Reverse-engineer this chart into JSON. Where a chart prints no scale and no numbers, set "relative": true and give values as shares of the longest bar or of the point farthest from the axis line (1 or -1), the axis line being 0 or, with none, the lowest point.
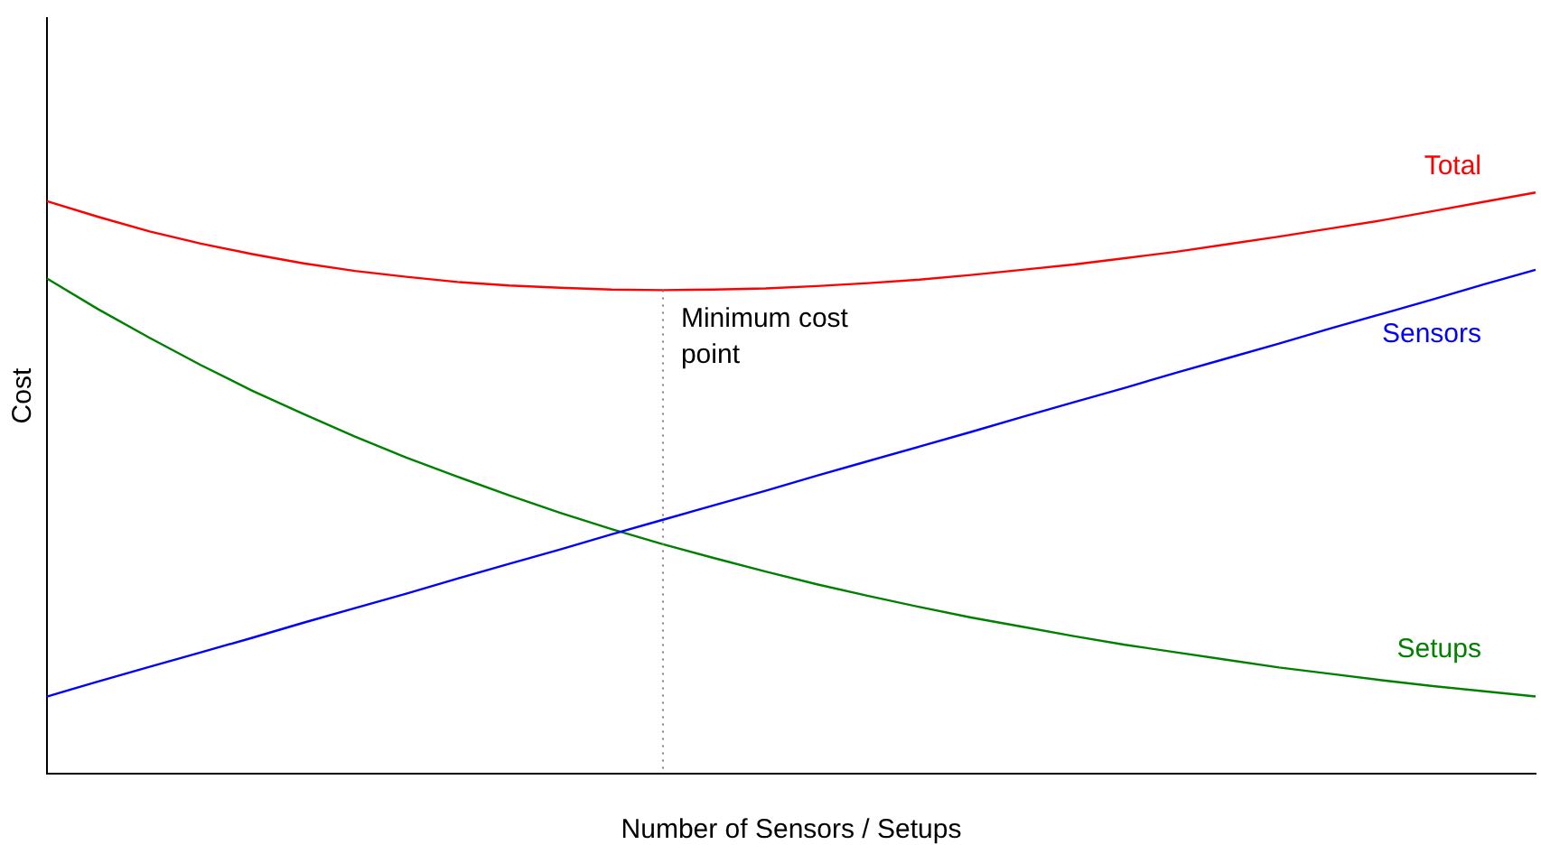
{
  "chart_data": {
    "type": "line",
    "relative": true,
    "xlabel": "Number of Sensors / Setups",
    "ylabel": "Cost",
    "categories": [
      null,
      null,
      null,
      null,
      null,
      null,
      null,
      null,
      null,
      null,
      null,
      null,
      null,
      null,
      null,
      null,
      null,
      null,
      null,
      null,
      null,
      null,
      null,
      null,
      null,
      null,
      null,
      null,
      null,
      null
    ],
    "series": [
      {
        "name": "Total",
        "color": "#ff0000",
        "values": [
          0.985,
          0.958,
          0.933,
          0.912,
          0.894,
          0.878,
          0.865,
          0.855,
          0.846,
          0.84,
          0.836,
          0.833,
          0.832,
          0.833,
          0.835,
          0.839,
          0.844,
          0.85,
          0.858,
          0.867,
          0.876,
          0.887,
          0.898,
          0.911,
          0.924,
          0.938,
          0.952,
          0.968,
          0.984,
          1
        ]
      },
      {
        "name": "Sensors",
        "color": "#0000ff",
        "values": [
          0.133,
          0.159,
          0.184,
          0.209,
          0.234,
          0.26,
          0.285,
          0.31,
          0.336,
          0.361,
          0.386,
          0.412,
          0.437,
          0.462,
          0.487,
          0.513,
          0.538,
          0.563,
          0.588,
          0.614,
          0.639,
          0.664,
          0.69,
          0.715,
          0.74,
          0.766,
          0.791,
          0.816,
          0.842,
          0.867
        ]
      },
      {
        "name": "Setups",
        "color": "#008000",
        "values": [
          0.852,
          0.799,
          0.75,
          0.703,
          0.659,
          0.619,
          0.58,
          0.544,
          0.511,
          0.479,
          0.449,
          0.421,
          0.395,
          0.371,
          0.348,
          0.326,
          0.306,
          0.287,
          0.269,
          0.253,
          0.237,
          0.222,
          0.209,
          0.196,
          0.183,
          0.172,
          0.161,
          0.151,
          0.142,
          0.133
        ]
      }
    ],
    "annotations": [
      {
        "text": "Minimum cost point",
        "y": 0.832
      }
    ],
    "grid": false,
    "legend": false,
    "marker": "none",
    "line_style": "solid"
  }
}
